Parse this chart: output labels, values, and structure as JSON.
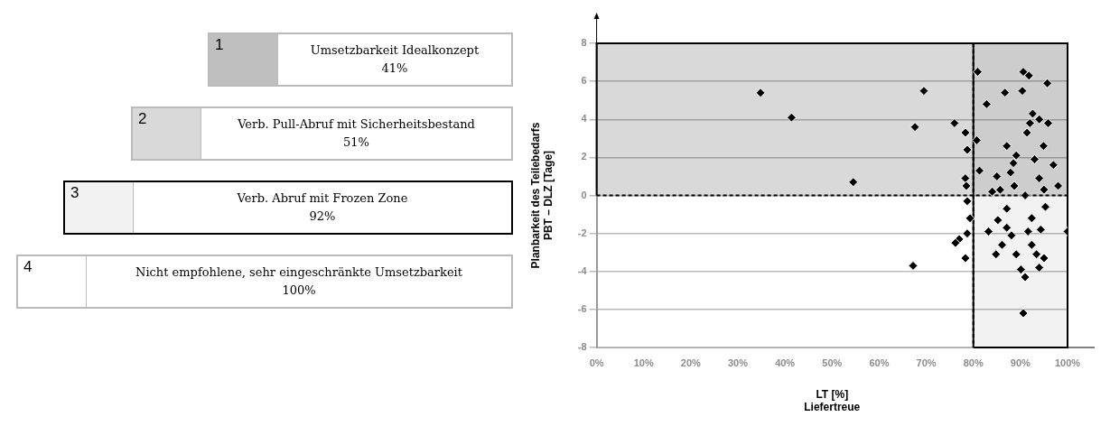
{
  "chart_data": [
    {
      "type": "other",
      "annotations": [
        "1",
        "Umsetzbarkeit Idealkonzept",
        "41%",
        "2",
        "Verb. Pull-Abruf mit Sicherheitsbestand",
        "51%",
        "3",
        "Verb. Abruf mit Frozen Zone",
        "92%",
        "4",
        "Nicht empfohlene, sehr eingeschränkte Umsetzbarkeit",
        "100%"
      ]
    },
    {
      "type": "scatter",
      "xlabel": "LT [%]\nLiefertreue",
      "ylabel": "Planbarkeit des Teilebedarfs\nPBT – DLZ [Tage]",
      "xlim": [
        0,
        100
      ],
      "xticks": [
        {
          "value": 0,
          "label": "0%"
        },
        {
          "value": 10,
          "label": "10%"
        },
        {
          "value": 20,
          "label": "20%"
        },
        {
          "value": 30,
          "label": "30%"
        },
        {
          "value": 40,
          "label": "40%"
        },
        {
          "value": 50,
          "label": "50%"
        },
        {
          "value": 60,
          "label": "60%"
        },
        {
          "value": 70,
          "label": "70%"
        },
        {
          "value": 80,
          "label": "80%"
        },
        {
          "value": 90,
          "label": "90%"
        },
        {
          "value": 100,
          "label": "100%"
        }
      ],
      "ylim": [
        -8,
        8
      ],
      "yticks": [
        -8,
        -6,
        -4,
        -2,
        0,
        2,
        4,
        6,
        8
      ],
      "grid": "y",
      "legend": false,
      "marker": "diamond",
      "bands": [
        {
          "axis": "y",
          "from": 0,
          "to": 8,
          "color": "#d9d9d9"
        },
        {
          "axis": "x",
          "from": 80,
          "to": 100,
          "color": "#f2f2f2"
        }
      ],
      "ref_lines": [
        {
          "axis": "x",
          "value": 80,
          "line_style": "dashed"
        }
      ],
      "series": [
        {
          "color": "#000000",
          "x": [
            34.8,
            41.4,
            54.5,
            67.2,
            69.5,
            67.6,
            76,
            78.3,
            78.7,
            78.3,
            78.5,
            78.7,
            79.3,
            78.7,
            77,
            76.2,
            78.3,
            80.7,
            81.3,
            80.9,
            82.8,
            84,
            85,
            85.7,
            86.7,
            87.1,
            87.9,
            88.5,
            89.1,
            88.7,
            90.6,
            91.8,
            90.4,
            91.4,
            92,
            92.6,
            94,
            95.7,
            95.9,
            94.9,
            93,
            91,
            94,
            97,
            98,
            95,
            95.3,
            83.2,
            85.2,
            86.1,
            84.8,
            87.1,
            88.1,
            89.1,
            90.1,
            91,
            91.6,
            92.4,
            93.4,
            94,
            95,
            90.6,
            100,
            92.4,
            94.3,
            87.1
          ],
          "values": [
            5.4,
            4.1,
            0.7,
            -3.7,
            5.5,
            3.6,
            3.8,
            3.3,
            2.4,
            0.9,
            0.5,
            -0.3,
            -1.2,
            -2.0,
            -2.3,
            -2.5,
            -3.3,
            2.9,
            1.3,
            6.5,
            4.8,
            0.2,
            1.0,
            0.3,
            5.4,
            2.6,
            1.2,
            1.7,
            2.1,
            0.5,
            6.5,
            6.3,
            5.5,
            3.3,
            3.8,
            4.3,
            4.0,
            5.9,
            3.8,
            2.6,
            1.9,
            0.0,
            0.9,
            1.6,
            0.5,
            0.3,
            -0.6,
            -1.9,
            -1.3,
            -2.6,
            -3.1,
            -1.7,
            -2.1,
            -3.1,
            -3.9,
            -4.3,
            -1.9,
            -2.6,
            -3.1,
            -3.8,
            -3.3,
            -6.2,
            -1.9,
            -1.2,
            -1.8,
            -0.7
          ]
        }
      ]
    }
  ]
}
